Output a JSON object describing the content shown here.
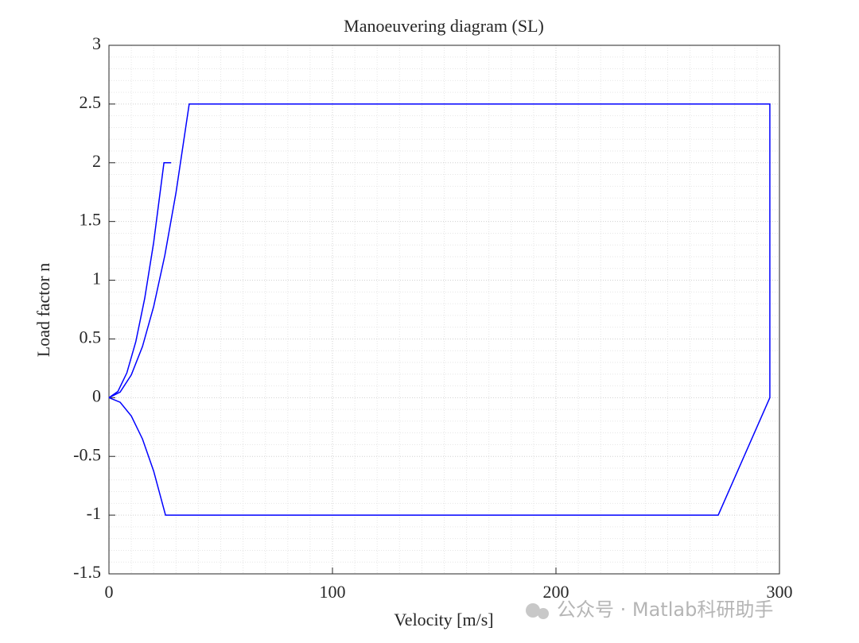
{
  "chart_data": {
    "type": "line",
    "title": "Manoeuvering diagram (SL)",
    "xlabel": "Velocity [m/s]",
    "ylabel": "Load factor n",
    "watermark": "公众号 · Matlab科研助手",
    "series": [
      {
        "color": "#0000ff",
        "x": [
          0,
          4,
          8,
          12,
          16,
          20,
          24.6,
          27.8
        ],
        "values": [
          0,
          0.053,
          0.211,
          0.476,
          0.846,
          1.322,
          2,
          2
        ]
      },
      {
        "color": "#0000ff",
        "x": [
          0,
          5,
          10,
          15,
          20,
          25,
          30,
          35.9,
          295.7,
          295.7,
          272.6,
          25.3,
          20,
          15,
          10,
          5,
          0
        ],
        "values": [
          0,
          0.048,
          0.194,
          0.436,
          0.776,
          1.212,
          1.746,
          2.5,
          2.5,
          0,
          -1,
          -1,
          -0.625,
          -0.352,
          -0.156,
          -0.039,
          0
        ]
      }
    ],
    "xlim": [
      0,
      300
    ],
    "xticks": [
      0,
      100,
      200,
      300
    ],
    "ylim": [
      -1.5,
      3
    ],
    "yticks": [
      -1.5,
      -1,
      -0.5,
      0,
      0.5,
      1,
      1.5,
      2,
      2.5,
      3
    ],
    "grid": true,
    "minor_grid": true
  }
}
